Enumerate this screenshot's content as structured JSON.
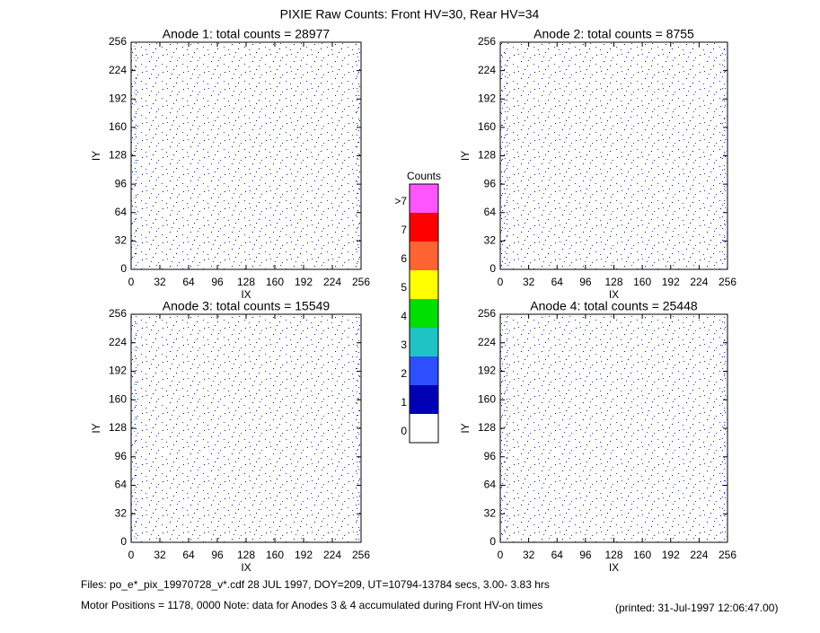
{
  "title": "PIXIE Raw Counts:  Front HV=30, Rear HV=34",
  "chart_data": [
    {
      "type": "heatmap",
      "title": "Anode 1: total counts = 28977",
      "x_label": "IX",
      "y_label": "IY",
      "xlim": [
        0,
        256
      ],
      "ylim": [
        0,
        256
      ],
      "xticks": [
        0,
        32,
        64,
        96,
        128,
        160,
        192,
        224,
        256
      ],
      "yticks": [
        0,
        32,
        64,
        96,
        128,
        160,
        192,
        224,
        256
      ]
    },
    {
      "type": "heatmap",
      "title": "Anode 2: total counts = 8755",
      "x_label": "IX",
      "y_label": "IY",
      "xlim": [
        0,
        256
      ],
      "ylim": [
        0,
        256
      ],
      "xticks": [
        0,
        32,
        64,
        96,
        128,
        160,
        192,
        224,
        256
      ],
      "yticks": [
        0,
        32,
        64,
        96,
        128,
        160,
        192,
        224,
        256
      ]
    },
    {
      "type": "heatmap",
      "title": "Anode 3: total counts = 15549",
      "x_label": "IX",
      "y_label": "IY",
      "xlim": [
        0,
        256
      ],
      "ylim": [
        0,
        256
      ],
      "xticks": [
        0,
        32,
        64,
        96,
        128,
        160,
        192,
        224,
        256
      ],
      "yticks": [
        0,
        32,
        64,
        96,
        128,
        160,
        192,
        224,
        256
      ]
    },
    {
      "type": "heatmap",
      "title": "Anode 4: total counts = 25448",
      "x_label": "IX",
      "y_label": "IY",
      "xlim": [
        0,
        256
      ],
      "ylim": [
        0,
        256
      ],
      "xticks": [
        0,
        32,
        64,
        96,
        128,
        160,
        192,
        224,
        256
      ],
      "yticks": [
        0,
        32,
        64,
        96,
        128,
        160,
        192,
        224,
        256
      ]
    }
  ],
  "colorbar": {
    "title": "Counts",
    "labels": [
      "0",
      "1",
      "2",
      "3",
      "4",
      "5",
      "6",
      "7",
      ">7"
    ],
    "colors": [
      "#ffffff",
      "#0000b4",
      "#2c50ff",
      "#1ec4c4",
      "#00e000",
      "#ffff00",
      "#ff6432",
      "#ff0000",
      "#ff55ff"
    ]
  },
  "footer": {
    "files": "Files: po_e*_pix_19970728_v*.cdf    28 JUL 1997, DOY=209, UT=10794-13784 secs,  3.00- 3.83 hrs",
    "motor": "Motor Positions = 1178, 0000   Note: data for Anodes 3 & 4 accumulated during Front HV-on times",
    "printed": "(printed: 31-Jul-1997 12:06:47.00)"
  }
}
